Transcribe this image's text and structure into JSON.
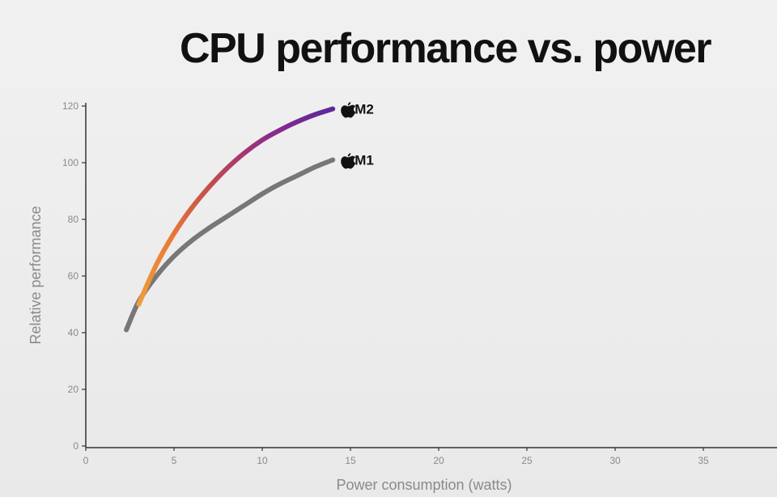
{
  "title": "CPU performance vs. power",
  "chart_data": {
    "type": "line",
    "title": "CPU performance vs. power",
    "xlabel": "Power consumption (watts)",
    "ylabel": "Relative performance",
    "xlim": [
      0,
      38
    ],
    "ylim": [
      0,
      120
    ],
    "x_ticks": [
      "0",
      "5",
      "10",
      "15",
      "20",
      "25",
      "30",
      "35"
    ],
    "y_ticks": [
      "0",
      "20",
      "40",
      "60",
      "80",
      "100",
      "120"
    ],
    "grid": false,
    "series": [
      {
        "name": "M1",
        "label": "M1",
        "color": "#777777",
        "x": [
          2.3,
          3,
          4,
          5,
          6,
          7,
          8,
          9,
          10,
          11,
          12,
          13,
          14
        ],
        "y": [
          41,
          51,
          60,
          67,
          72.5,
          77,
          81,
          85,
          89,
          92.5,
          95.5,
          98.5,
          101
        ]
      },
      {
        "name": "M2",
        "label": "M2",
        "colors": [
          "#ee9e3c",
          "#ea7a36",
          "#c24a4e",
          "#8c2a8e",
          "#5a2a9a"
        ],
        "x": [
          3,
          4,
          5,
          6,
          7,
          8,
          9,
          10,
          11,
          12,
          13,
          14
        ],
        "y": [
          50,
          64,
          75,
          84,
          91.5,
          98,
          103.5,
          108,
          111.5,
          114.5,
          117,
          119
        ]
      }
    ]
  }
}
